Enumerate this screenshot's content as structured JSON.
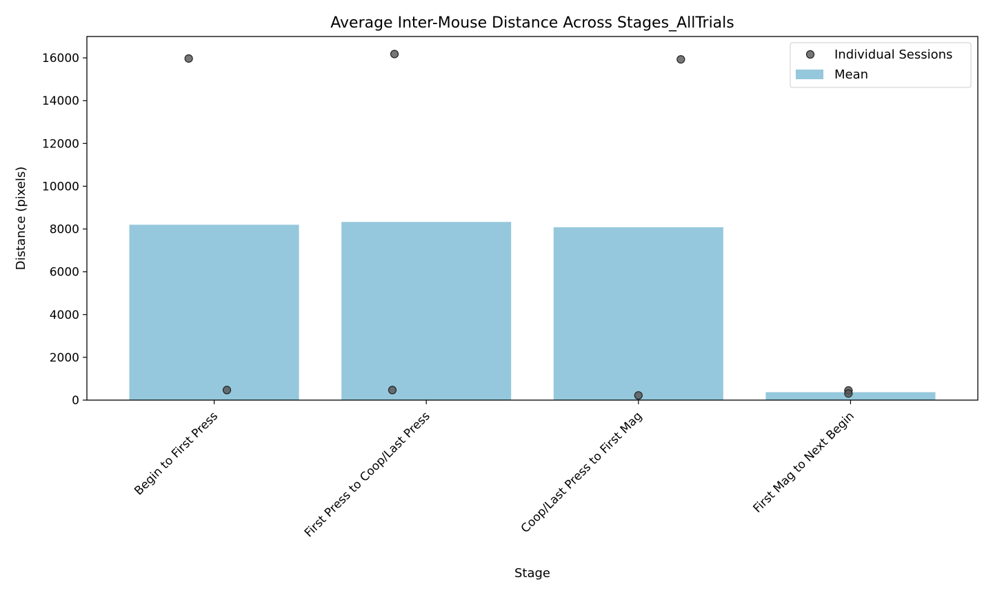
{
  "chart_data": {
    "type": "bar",
    "title": "Average Inter-Mouse Distance Across Stages_AllTrials",
    "xlabel": "Stage",
    "ylabel": "Distance (pixels)",
    "categories": [
      "Begin to First Press",
      "First Press to Coop/Last Press",
      "Coop/Last Press to First Mag",
      "First Mag to Next Begin"
    ],
    "series": [
      {
        "name": "Mean",
        "type": "bar",
        "color": "#95c8dc",
        "values": [
          8200,
          8330,
          8080,
          370
        ]
      },
      {
        "name": "Individual Sessions",
        "type": "scatter",
        "color": "#555555",
        "points": [
          {
            "category": 0,
            "offset": -0.12,
            "value": 15970
          },
          {
            "category": 0,
            "offset": 0.06,
            "value": 470
          },
          {
            "category": 1,
            "offset": -0.15,
            "value": 16180
          },
          {
            "category": 1,
            "offset": -0.16,
            "value": 470
          },
          {
            "category": 2,
            "offset": 0.2,
            "value": 15930
          },
          {
            "category": 2,
            "offset": 0.0,
            "value": 220
          },
          {
            "category": 3,
            "offset": -0.01,
            "value": 450
          },
          {
            "category": 3,
            "offset": -0.01,
            "value": 310
          }
        ]
      }
    ],
    "ylim": [
      0,
      17000
    ],
    "yticks": [
      0,
      2000,
      4000,
      6000,
      8000,
      10000,
      12000,
      14000,
      16000
    ],
    "grid": false,
    "legend": {
      "position": "top-right",
      "entries": [
        {
          "label": "Individual Sessions",
          "marker": "circle",
          "color": "#555555"
        },
        {
          "label": "Mean",
          "marker": "rect",
          "color": "#95c8dc"
        }
      ]
    }
  }
}
